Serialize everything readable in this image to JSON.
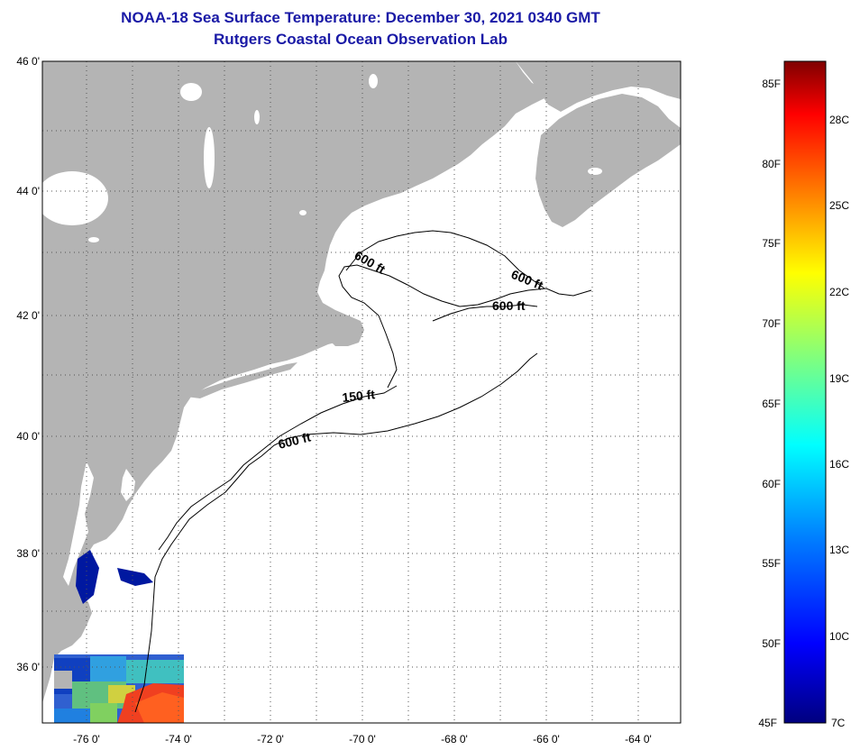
{
  "title": {
    "line1": "NOAA-18 Sea Surface Temperature:  December 30, 2021 0340 GMT",
    "line2": "Rutgers Coastal Ocean Observation Lab"
  },
  "map": {
    "lat_labels": [
      "46 0'",
      "44 0'",
      "42 0'",
      "40 0'",
      "38 0'",
      "36 0'"
    ],
    "lon_labels": [
      "-76 0'",
      "-74 0'",
      "-72 0'",
      "-70 0'",
      "-68 0'",
      "-66 0'",
      "-64 0'"
    ],
    "contour_labels": [
      "600 ft",
      "600 ft",
      "600 ft",
      "150 ft",
      "600 ft"
    ],
    "colors": {
      "land": "#b4b4b4",
      "ocean": "#ffffff",
      "contour": "#000000"
    }
  },
  "colorbar": {
    "fahrenheit_labels": [
      "85F",
      "80F",
      "75F",
      "70F",
      "65F",
      "60F",
      "55F",
      "50F",
      "45F"
    ],
    "celsius_labels": [
      "28C",
      "25C",
      "22C",
      "19C",
      "16C",
      "13C",
      "10C",
      "7C"
    ],
    "gradient": [
      "#00007f",
      "#0000ff",
      "#007fff",
      "#00ffff",
      "#7fff7f",
      "#ffff00",
      "#ff7f00",
      "#ff0000",
      "#7f0000"
    ]
  }
}
